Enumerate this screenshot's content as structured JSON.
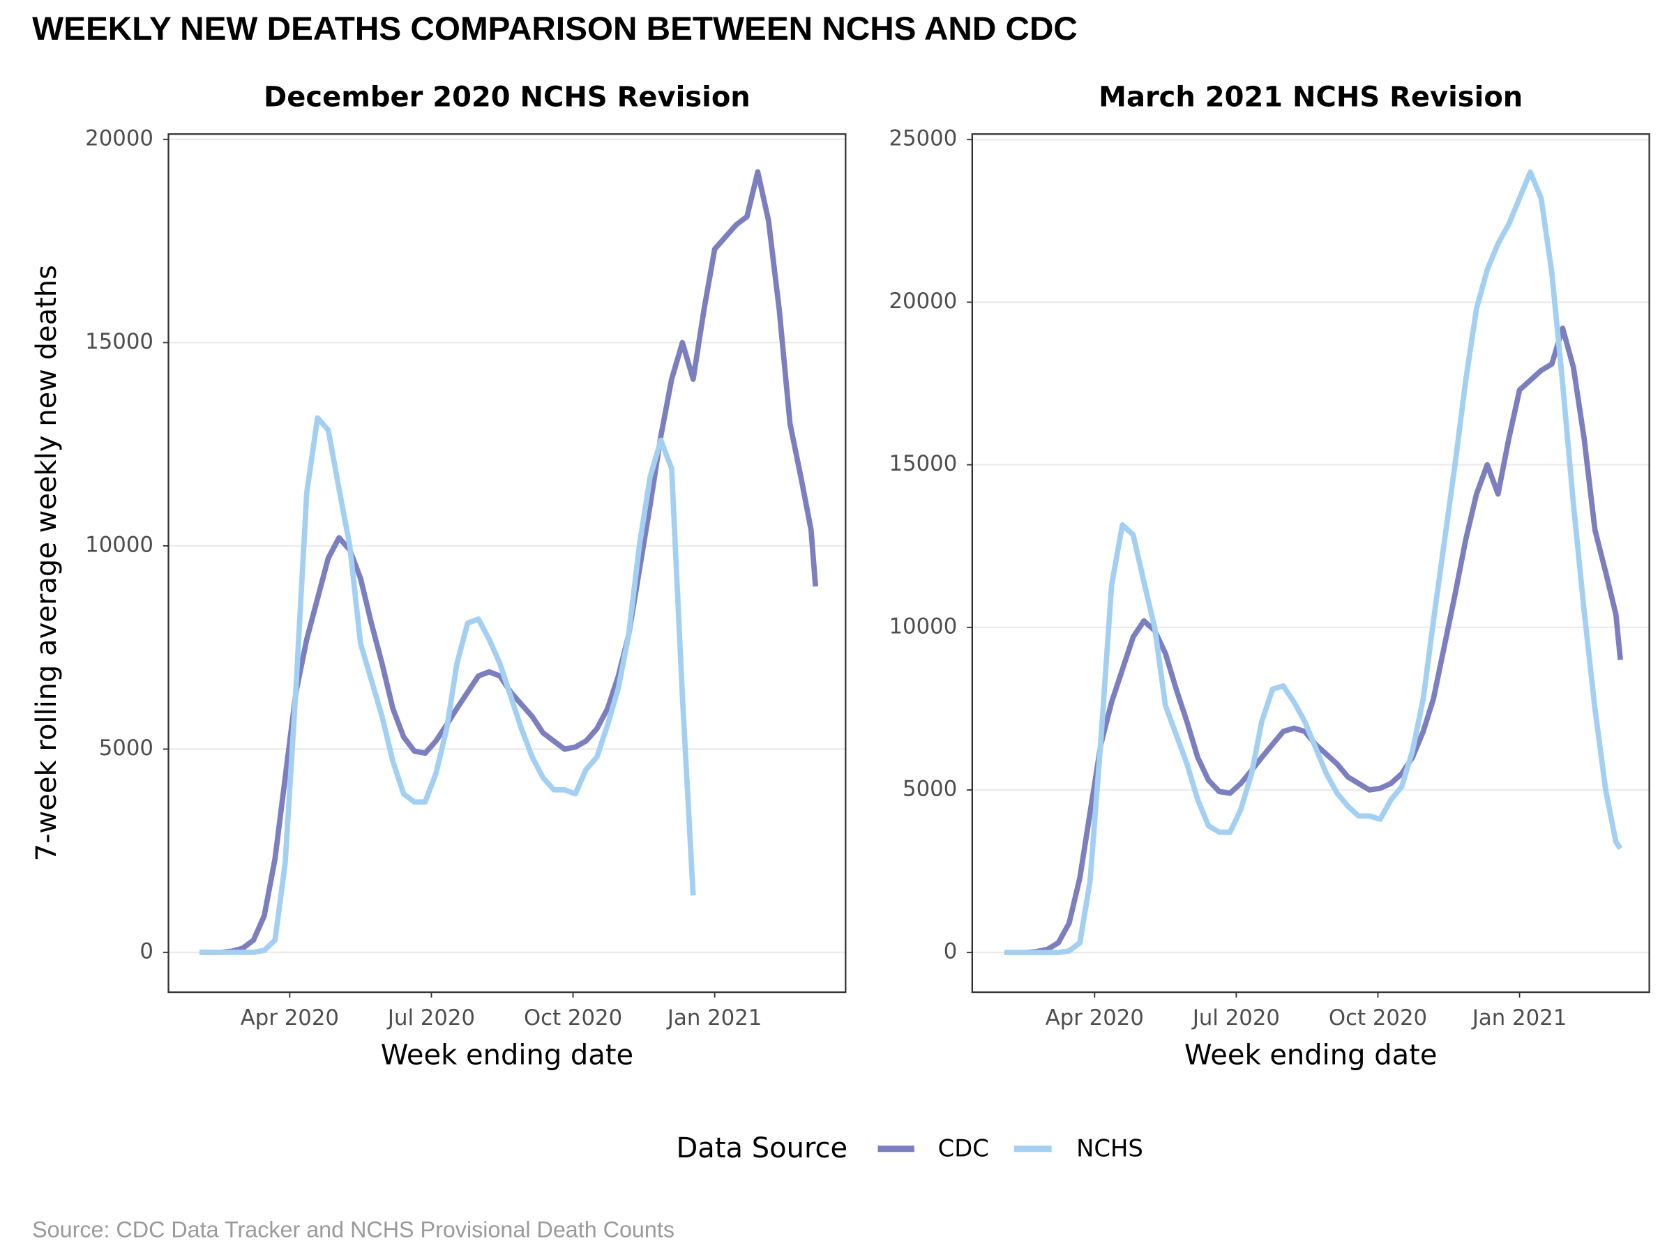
{
  "title": "WEEKLY NEW DEATHS COMPARISON BETWEEN NCHS AND CDC",
  "legend_title": "Data Source",
  "source": "Source: CDC Data Tracker and NCHS Provisional Death Counts",
  "chart_data": [
    {
      "type": "line",
      "title": "December 2020 NCHS Revision",
      "xlabel": "Week ending date",
      "ylabel": "7-week rolling average weekly new deaths",
      "x": [
        2020.091,
        2020.11,
        2020.129,
        2020.148,
        2020.167,
        2020.186,
        2020.205,
        2020.224,
        2020.242,
        2020.261,
        2020.28,
        2020.299,
        2020.318,
        2020.337,
        2020.356,
        2020.375,
        2020.394,
        2020.413,
        2020.432,
        2020.451,
        2020.47,
        2020.489,
        2020.508,
        2020.527,
        2020.545,
        2020.564,
        2020.583,
        2020.602,
        2020.621,
        2020.64,
        2020.659,
        2020.678,
        2020.697,
        2020.716,
        2020.735,
        2020.754,
        2020.773,
        2020.792,
        2020.811,
        2020.83,
        2020.848,
        2020.867,
        2020.886,
        2020.905,
        2020.924,
        2020.943,
        2020.962,
        2020.981,
        2021.0,
        2021.019,
        2021.038,
        2021.057,
        2021.076,
        2021.095,
        2021.114,
        2021.133,
        2021.152,
        2021.17,
        2021.178
      ],
      "series": [
        {
          "name": "CDC",
          "color": "#7b7fbf",
          "values": [
            0,
            0,
            0,
            30,
            100,
            300,
            900,
            2300,
            4300,
            6400,
            7700,
            8700,
            9700,
            10200,
            9900,
            9200,
            8100,
            7100,
            6000,
            5300,
            4950,
            4900,
            5200,
            5600,
            6000,
            6400,
            6800,
            6900,
            6800,
            6400,
            6100,
            5800,
            5400,
            5200,
            5000,
            5050,
            5200,
            5500,
            6000,
            6800,
            7800,
            9400,
            11000,
            12700,
            14100,
            15000,
            14100,
            15800,
            17300,
            17600,
            17900,
            18100,
            19200,
            18000,
            15800,
            13000,
            11700,
            10400,
            9000
          ]
        },
        {
          "name": "NCHS",
          "color": "#a3d0f2",
          "values": [
            0,
            0,
            0,
            0,
            0,
            0,
            50,
            300,
            2200,
            6500,
            11300,
            13150,
            12850,
            11400,
            10000,
            7600,
            6700,
            5800,
            4700,
            3900,
            3700,
            3700,
            4400,
            5500,
            7100,
            8100,
            8200,
            7700,
            7100,
            6300,
            5500,
            4800,
            4300,
            4000,
            4000,
            3900,
            4500,
            4800,
            5600,
            6500,
            7800,
            10000,
            11700,
            12600,
            11900,
            6300,
            1400,
            null,
            null,
            null,
            null,
            null,
            null,
            null,
            null,
            null,
            null,
            null,
            null
          ]
        }
      ],
      "xlim": [
        2020.036,
        2021.231
      ],
      "xticks": [
        {
          "value": 2020.25,
          "label": "Apr 2020"
        },
        {
          "value": 2020.5,
          "label": "Jul 2020"
        },
        {
          "value": 2020.75,
          "label": "Oct 2020"
        },
        {
          "value": 2021,
          "label": "Jan 2021"
        }
      ],
      "ylim": [
        -980,
        20130
      ],
      "yticks": [
        0,
        5000,
        10000,
        15000,
        20000
      ],
      "grid": true
    },
    {
      "type": "line",
      "title": "March 2021 NCHS Revision",
      "xlabel": "Week ending date",
      "x": [
        2020.091,
        2020.11,
        2020.129,
        2020.148,
        2020.167,
        2020.186,
        2020.205,
        2020.224,
        2020.242,
        2020.261,
        2020.28,
        2020.299,
        2020.318,
        2020.337,
        2020.356,
        2020.375,
        2020.394,
        2020.413,
        2020.432,
        2020.451,
        2020.47,
        2020.489,
        2020.508,
        2020.527,
        2020.545,
        2020.564,
        2020.583,
        2020.602,
        2020.621,
        2020.64,
        2020.659,
        2020.678,
        2020.697,
        2020.716,
        2020.735,
        2020.754,
        2020.773,
        2020.792,
        2020.811,
        2020.83,
        2020.848,
        2020.867,
        2020.886,
        2020.905,
        2020.924,
        2020.943,
        2020.962,
        2020.981,
        2021.0,
        2021.019,
        2021.038,
        2021.057,
        2021.076,
        2021.095,
        2021.114,
        2021.133,
        2021.152,
        2021.17,
        2021.178
      ],
      "series": [
        {
          "name": "CDC",
          "color": "#7b7fbf",
          "values": [
            0,
            0,
            0,
            30,
            100,
            300,
            900,
            2300,
            4300,
            6400,
            7700,
            8700,
            9700,
            10200,
            9900,
            9200,
            8100,
            7100,
            6000,
            5300,
            4950,
            4900,
            5200,
            5600,
            6000,
            6400,
            6800,
            6900,
            6800,
            6400,
            6100,
            5800,
            5400,
            5200,
            5000,
            5050,
            5200,
            5500,
            6000,
            6800,
            7800,
            9400,
            11000,
            12700,
            14100,
            15000,
            14100,
            15800,
            17300,
            17600,
            17900,
            18100,
            19200,
            18000,
            15800,
            13000,
            11700,
            10400,
            9000
          ]
        },
        {
          "name": "NCHS",
          "color": "#a3d0f2",
          "values": [
            0,
            0,
            0,
            0,
            0,
            0,
            50,
            300,
            2200,
            6500,
            11300,
            13150,
            12850,
            11400,
            10000,
            7600,
            6700,
            5800,
            4700,
            3900,
            3700,
            3700,
            4400,
            5500,
            7100,
            8100,
            8200,
            7700,
            7100,
            6300,
            5500,
            4900,
            4500,
            4200,
            4200,
            4100,
            4700,
            5100,
            6200,
            7800,
            10200,
            12600,
            15000,
            17600,
            19800,
            21000,
            21800,
            22400,
            23200,
            24000,
            23200,
            20900,
            17500,
            13800,
            10500,
            7500,
            5000,
            3400,
            3200
          ]
        }
      ],
      "xlim": [
        2020.034,
        2021.229
      ],
      "xticks": [
        {
          "value": 2020.25,
          "label": "Apr 2020"
        },
        {
          "value": 2020.5,
          "label": "Jul 2020"
        },
        {
          "value": 2020.75,
          "label": "Oct 2020"
        },
        {
          "value": 2021,
          "label": "Jan 2021"
        }
      ],
      "ylim": [
        -1220,
        25170
      ],
      "yticks": [
        0,
        5000,
        10000,
        15000,
        20000,
        25000
      ],
      "grid": true
    }
  ]
}
